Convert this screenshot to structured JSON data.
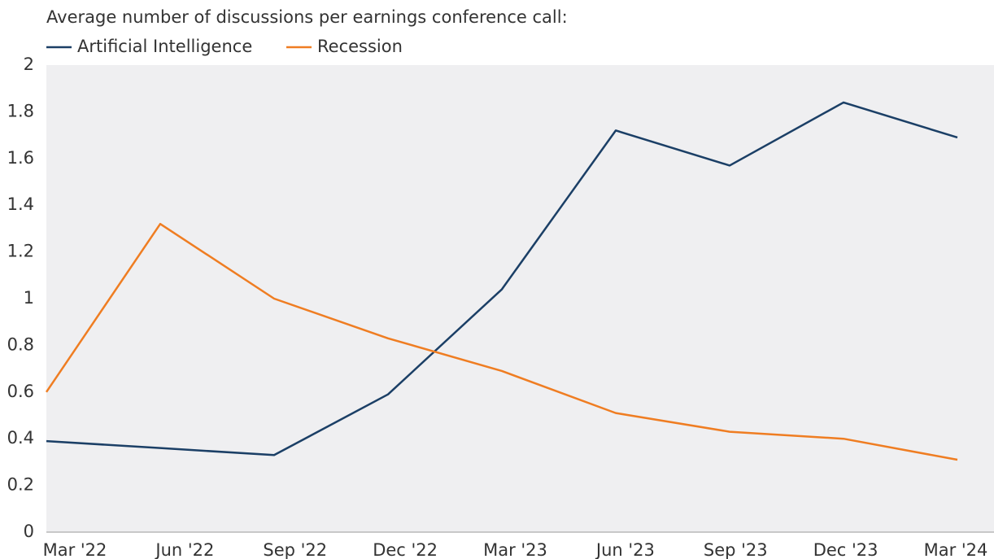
{
  "chart_data": {
    "type": "line",
    "title": "Average number of discussions per earnings conference call:",
    "categories": [
      "Mar '22",
      "Jun '22",
      "Sep '22",
      "Dec '22",
      "Mar '23",
      "Jun '23",
      "Sep '23",
      "Dec '23",
      "Mar '24"
    ],
    "series": [
      {
        "name": "Artificial Intelligence",
        "color": "#1b3f66",
        "values": [
          0.39,
          0.36,
          0.33,
          0.59,
          1.04,
          1.72,
          1.57,
          1.84,
          1.69
        ]
      },
      {
        "name": "Recession",
        "color": "#ef7d22",
        "values": [
          0.6,
          1.32,
          1.0,
          0.83,
          0.69,
          0.51,
          0.43,
          0.4,
          0.31
        ]
      }
    ],
    "ylim": [
      0,
      2
    ],
    "yticks": [
      0,
      0.2,
      0.4,
      0.6,
      0.8,
      1,
      1.2,
      1.4,
      1.6,
      1.8,
      2
    ],
    "grid": false
  }
}
